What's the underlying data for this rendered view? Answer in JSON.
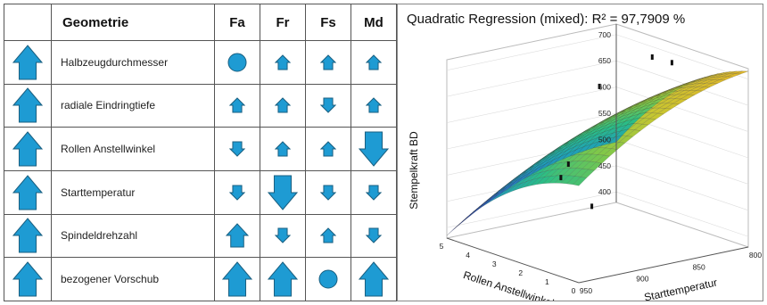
{
  "table": {
    "header": "Geometrie",
    "columns": [
      "Fa",
      "Fr",
      "Fs",
      "Md"
    ],
    "rows": [
      {
        "label": "Halbzeugdurchmesser",
        "effects": [
          "circle",
          "up-small",
          "up-small",
          "up-small"
        ]
      },
      {
        "label": "radiale Eindringtiefe",
        "effects": [
          "up-small",
          "up-small",
          "down-small",
          "up-small"
        ]
      },
      {
        "label": "Rollen Anstellwinkel",
        "effects": [
          "down-small",
          "up-small",
          "up-small",
          "down-large"
        ]
      },
      {
        "label": "Starttemperatur",
        "effects": [
          "down-small",
          "down-large",
          "down-small",
          "down-small"
        ]
      },
      {
        "label": "Spindeldrehzahl",
        "effects": [
          "up-medium",
          "down-small",
          "up-small",
          "down-small"
        ]
      },
      {
        "label": "bezogener Vorschub",
        "effects": [
          "up-large",
          "up-large",
          "circle",
          "up-large"
        ]
      }
    ],
    "row_icon": "up-arrow-large-icon",
    "color": "#1e9bd3"
  },
  "plot": {
    "title": "Quadratic Regression (mixed): R² = 97,7909 %",
    "chart_data": {
      "type": "surface",
      "z_label": "Stempelkraft BD",
      "x_label": "Rollen Anstellwinkel",
      "y_label": "Starttemperatur",
      "z_ticks": [
        "400",
        "450",
        "500",
        "550",
        "600",
        "650",
        "700"
      ],
      "x_ticks": [
        "5",
        "4",
        "3",
        "2",
        "1",
        "0"
      ],
      "y_ticks": [
        "950",
        "900",
        "850",
        "800"
      ],
      "zlim": [
        380,
        720
      ],
      "colormap": [
        "#2a2a8c",
        "#2f5fc7",
        "#1f9fb8",
        "#2bbd86",
        "#7ec84a",
        "#c7c630",
        "#e2b52a"
      ]
    }
  }
}
